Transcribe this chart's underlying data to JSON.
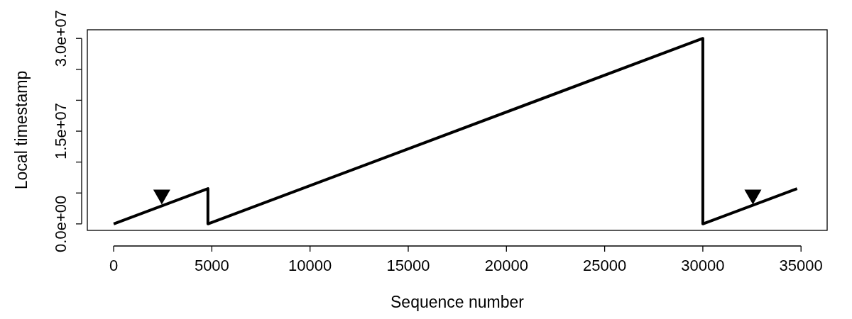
{
  "chart_data": {
    "type": "line",
    "xlabel": "Sequence number",
    "ylabel": "Local timestamp",
    "xlim": [
      -1340,
      36330
    ],
    "ylim": [
      -1050000,
      31400000
    ],
    "xticks": [
      0,
      5000,
      10000,
      15000,
      20000,
      25000,
      30000,
      35000
    ],
    "yticks": [
      {
        "value": 0,
        "label": "0.0e+00"
      },
      {
        "value": 5000000,
        "label": null
      },
      {
        "value": 10000000,
        "label": null
      },
      {
        "value": 15000000,
        "label": "1.5e+07"
      },
      {
        "value": 20000000,
        "label": null
      },
      {
        "value": 25000000,
        "label": null
      },
      {
        "value": 30000000,
        "label": "3.0e+07"
      }
    ],
    "grid": false,
    "series": [
      {
        "color": "#000000",
        "x": [
          0,
          4800,
          4800,
          30000,
          30000,
          34800
        ],
        "values": [
          0,
          5700000,
          0,
          30000000,
          0,
          5700000
        ]
      },
      {
        "type": "scatter",
        "marker": "triangle",
        "color": "#000000",
        "x": [
          2450,
          32550
        ],
        "values": [
          4400000,
          4400000
        ]
      }
    ]
  }
}
